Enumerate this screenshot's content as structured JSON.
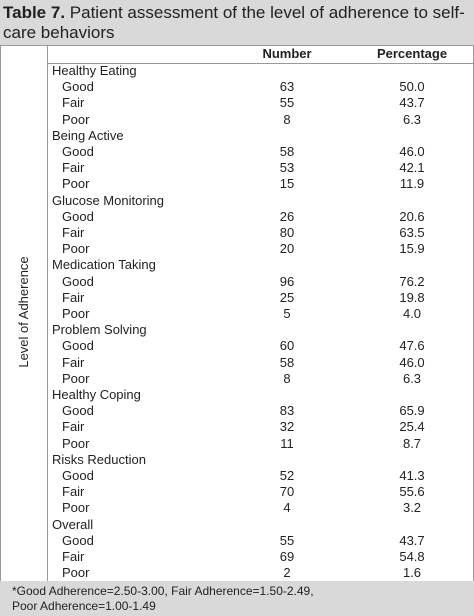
{
  "header": {
    "label": "Table 7.",
    "title": "Patient assessment of the level of adherence to self-care behaviors"
  },
  "table": {
    "row_header": "Level of Adherence",
    "columns": [
      "Number",
      "Percentage"
    ],
    "groups": [
      {
        "name": "Healthy Eating",
        "rows": [
          {
            "label": "Good",
            "number": "63",
            "percentage": "50.0"
          },
          {
            "label": "Fair",
            "number": "55",
            "percentage": "43.7"
          },
          {
            "label": "Poor",
            "number": "8",
            "percentage": "6.3"
          }
        ]
      },
      {
        "name": "Being Active",
        "rows": [
          {
            "label": "Good",
            "number": "58",
            "percentage": "46.0"
          },
          {
            "label": "Fair",
            "number": "53",
            "percentage": "42.1"
          },
          {
            "label": "Poor",
            "number": "15",
            "percentage": "11.9"
          }
        ]
      },
      {
        "name": "Glucose Monitoring",
        "rows": [
          {
            "label": "Good",
            "number": "26",
            "percentage": "20.6"
          },
          {
            "label": "Fair",
            "number": "80",
            "percentage": "63.5"
          },
          {
            "label": "Poor",
            "number": "20",
            "percentage": "15.9"
          }
        ]
      },
      {
        "name": "Medication Taking",
        "rows": [
          {
            "label": "Good",
            "number": "96",
            "percentage": "76.2"
          },
          {
            "label": "Fair",
            "number": "25",
            "percentage": "19.8"
          },
          {
            "label": "Poor",
            "number": "5",
            "percentage": "4.0"
          }
        ]
      },
      {
        "name": "Problem Solving",
        "rows": [
          {
            "label": "Good",
            "number": "60",
            "percentage": "47.6"
          },
          {
            "label": "Fair",
            "number": "58",
            "percentage": "46.0"
          },
          {
            "label": "Poor",
            "number": "8",
            "percentage": "6.3"
          }
        ]
      },
      {
        "name": "Healthy Coping",
        "rows": [
          {
            "label": "Good",
            "number": "83",
            "percentage": "65.9"
          },
          {
            "label": "Fair",
            "number": "32",
            "percentage": "25.4"
          },
          {
            "label": "Poor",
            "number": "11",
            "percentage": "8.7"
          }
        ]
      },
      {
        "name": "Risks Reduction",
        "rows": [
          {
            "label": "Good",
            "number": "52",
            "percentage": "41.3"
          },
          {
            "label": "Fair",
            "number": "70",
            "percentage": "55.6"
          },
          {
            "label": "Poor",
            "number": "4",
            "percentage": "3.2"
          }
        ]
      },
      {
        "name": "Overall",
        "rows": [
          {
            "label": "Good",
            "number": "55",
            "percentage": "43.7"
          },
          {
            "label": "Fair",
            "number": "69",
            "percentage": "54.8"
          },
          {
            "label": "Poor",
            "number": "2",
            "percentage": "1.6"
          }
        ]
      }
    ]
  },
  "footer": [
    "*Good Adherence=2.50-3.00, Fair Adherence=1.50-2.49,",
    "Poor Adherence=1.00-1.49"
  ]
}
